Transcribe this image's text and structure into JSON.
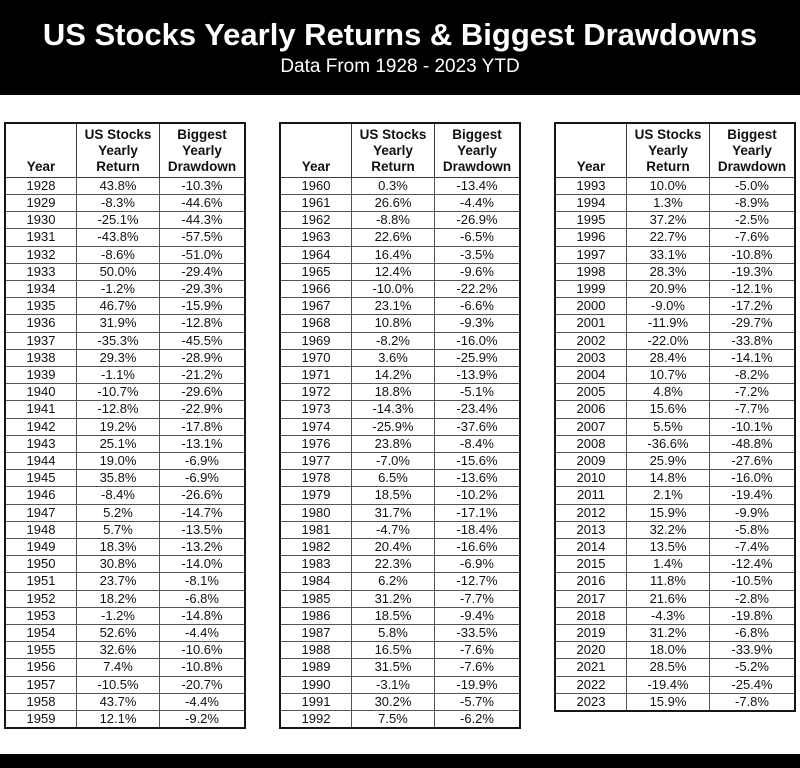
{
  "chart_data": {
    "type": "table",
    "title": "US Stocks Yearly Returns & Biggest Drawdowns",
    "subtitle": "Data From 1928 - 2023 YTD",
    "columns": [
      "Year",
      "US Stocks Yearly Return",
      "Biggest Yearly Drawdown"
    ],
    "highlight_year": "2023",
    "colors": {
      "positive_bg": "#d9f2d0",
      "negative_bg": "#f4b2b7",
      "banner_bg": "#000000",
      "banner_text": "#ffffff",
      "highlight_bg": "#000000",
      "highlight_text": "#ffffff"
    },
    "tables": [
      [
        [
          "1928",
          "43.8%",
          "-10.3%"
        ],
        [
          "1929",
          "-8.3%",
          "-44.6%"
        ],
        [
          "1930",
          "-25.1%",
          "-44.3%"
        ],
        [
          "1931",
          "-43.8%",
          "-57.5%"
        ],
        [
          "1932",
          "-8.6%",
          "-51.0%"
        ],
        [
          "1933",
          "50.0%",
          "-29.4%"
        ],
        [
          "1934",
          "-1.2%",
          "-29.3%"
        ],
        [
          "1935",
          "46.7%",
          "-15.9%"
        ],
        [
          "1936",
          "31.9%",
          "-12.8%"
        ],
        [
          "1937",
          "-35.3%",
          "-45.5%"
        ],
        [
          "1938",
          "29.3%",
          "-28.9%"
        ],
        [
          "1939",
          "-1.1%",
          "-21.2%"
        ],
        [
          "1940",
          "-10.7%",
          "-29.6%"
        ],
        [
          "1941",
          "-12.8%",
          "-22.9%"
        ],
        [
          "1942",
          "19.2%",
          "-17.8%"
        ],
        [
          "1943",
          "25.1%",
          "-13.1%"
        ],
        [
          "1944",
          "19.0%",
          "-6.9%"
        ],
        [
          "1945",
          "35.8%",
          "-6.9%"
        ],
        [
          "1946",
          "-8.4%",
          "-26.6%"
        ],
        [
          "1947",
          "5.2%",
          "-14.7%"
        ],
        [
          "1948",
          "5.7%",
          "-13.5%"
        ],
        [
          "1949",
          "18.3%",
          "-13.2%"
        ],
        [
          "1950",
          "30.8%",
          "-14.0%"
        ],
        [
          "1951",
          "23.7%",
          "-8.1%"
        ],
        [
          "1952",
          "18.2%",
          "-6.8%"
        ],
        [
          "1953",
          "-1.2%",
          "-14.8%"
        ],
        [
          "1954",
          "52.6%",
          "-4.4%"
        ],
        [
          "1955",
          "32.6%",
          "-10.6%"
        ],
        [
          "1956",
          "7.4%",
          "-10.8%"
        ],
        [
          "1957",
          "-10.5%",
          "-20.7%"
        ],
        [
          "1958",
          "43.7%",
          "-4.4%"
        ],
        [
          "1959",
          "12.1%",
          "-9.2%"
        ]
      ],
      [
        [
          "1960",
          "0.3%",
          "-13.4%"
        ],
        [
          "1961",
          "26.6%",
          "-4.4%"
        ],
        [
          "1962",
          "-8.8%",
          "-26.9%"
        ],
        [
          "1963",
          "22.6%",
          "-6.5%"
        ],
        [
          "1964",
          "16.4%",
          "-3.5%"
        ],
        [
          "1965",
          "12.4%",
          "-9.6%"
        ],
        [
          "1966",
          "-10.0%",
          "-22.2%"
        ],
        [
          "1967",
          "23.1%",
          "-6.6%"
        ],
        [
          "1968",
          "10.8%",
          "-9.3%"
        ],
        [
          "1969",
          "-8.2%",
          "-16.0%"
        ],
        [
          "1970",
          "3.6%",
          "-25.9%"
        ],
        [
          "1971",
          "14.2%",
          "-13.9%"
        ],
        [
          "1972",
          "18.8%",
          "-5.1%"
        ],
        [
          "1973",
          "-14.3%",
          "-23.4%"
        ],
        [
          "1974",
          "-25.9%",
          "-37.6%"
        ],
        [
          "1976",
          "23.8%",
          "-8.4%"
        ],
        [
          "1977",
          "-7.0%",
          "-15.6%"
        ],
        [
          "1978",
          "6.5%",
          "-13.6%"
        ],
        [
          "1979",
          "18.5%",
          "-10.2%"
        ],
        [
          "1980",
          "31.7%",
          "-17.1%"
        ],
        [
          "1981",
          "-4.7%",
          "-18.4%"
        ],
        [
          "1982",
          "20.4%",
          "-16.6%"
        ],
        [
          "1983",
          "22.3%",
          "-6.9%"
        ],
        [
          "1984",
          "6.2%",
          "-12.7%"
        ],
        [
          "1985",
          "31.2%",
          "-7.7%"
        ],
        [
          "1986",
          "18.5%",
          "-9.4%"
        ],
        [
          "1987",
          "5.8%",
          "-33.5%"
        ],
        [
          "1988",
          "16.5%",
          "-7.6%"
        ],
        [
          "1989",
          "31.5%",
          "-7.6%"
        ],
        [
          "1990",
          "-3.1%",
          "-19.9%"
        ],
        [
          "1991",
          "30.2%",
          "-5.7%"
        ],
        [
          "1992",
          "7.5%",
          "-6.2%"
        ]
      ],
      [
        [
          "1993",
          "10.0%",
          "-5.0%"
        ],
        [
          "1994",
          "1.3%",
          "-8.9%"
        ],
        [
          "1995",
          "37.2%",
          "-2.5%"
        ],
        [
          "1996",
          "22.7%",
          "-7.6%"
        ],
        [
          "1997",
          "33.1%",
          "-10.8%"
        ],
        [
          "1998",
          "28.3%",
          "-19.3%"
        ],
        [
          "1999",
          "20.9%",
          "-12.1%"
        ],
        [
          "2000",
          "-9.0%",
          "-17.2%"
        ],
        [
          "2001",
          "-11.9%",
          "-29.7%"
        ],
        [
          "2002",
          "-22.0%",
          "-33.8%"
        ],
        [
          "2003",
          "28.4%",
          "-14.1%"
        ],
        [
          "2004",
          "10.7%",
          "-8.2%"
        ],
        [
          "2005",
          "4.8%",
          "-7.2%"
        ],
        [
          "2006",
          "15.6%",
          "-7.7%"
        ],
        [
          "2007",
          "5.5%",
          "-10.1%"
        ],
        [
          "2008",
          "-36.6%",
          "-48.8%"
        ],
        [
          "2009",
          "25.9%",
          "-27.6%"
        ],
        [
          "2010",
          "14.8%",
          "-16.0%"
        ],
        [
          "2011",
          "2.1%",
          "-19.4%"
        ],
        [
          "2012",
          "15.9%",
          "-9.9%"
        ],
        [
          "2013",
          "32.2%",
          "-5.8%"
        ],
        [
          "2014",
          "13.5%",
          "-7.4%"
        ],
        [
          "2015",
          "1.4%",
          "-12.4%"
        ],
        [
          "2016",
          "11.8%",
          "-10.5%"
        ],
        [
          "2017",
          "21.6%",
          "-2.8%"
        ],
        [
          "2018",
          "-4.3%",
          "-19.8%"
        ],
        [
          "2019",
          "31.2%",
          "-6.8%"
        ],
        [
          "2020",
          "18.0%",
          "-33.9%"
        ],
        [
          "2021",
          "28.5%",
          "-5.2%"
        ],
        [
          "2022",
          "-19.4%",
          "-25.4%"
        ],
        [
          "2023",
          "15.9%",
          "-7.8%"
        ]
      ]
    ]
  }
}
